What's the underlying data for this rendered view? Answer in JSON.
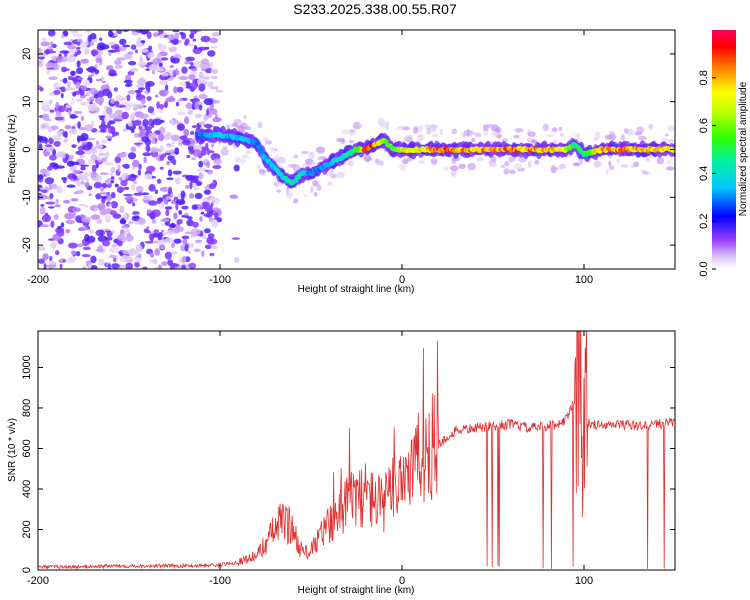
{
  "title": "S233.2025.338.00.55.R07",
  "chart_data": [
    {
      "type": "heatmap",
      "xlabel": "Height of straight line (km)",
      "ylabel": "Frequency (Hz)",
      "xlim": [
        -200,
        150
      ],
      "ylim": [
        -25,
        25
      ],
      "xticks": [
        -200,
        -100,
        0,
        100
      ],
      "yticks": [
        -20,
        -10,
        0,
        10,
        20
      ],
      "colorbar": {
        "label": "Normalized spectral amplitude",
        "range": [
          0,
          1
        ],
        "ticks": [
          0.0,
          0.2,
          0.4,
          0.6,
          0.8
        ],
        "colors": [
          "#ffffff",
          "#c8a0f0",
          "#8000ff",
          "#0000ff",
          "#00c8ff",
          "#00ff80",
          "#80ff00",
          "#ffff00",
          "#ff8000",
          "#ff0000",
          "#ff0060"
        ]
      },
      "ridge": {
        "x": [
          -110,
          -100,
          -90,
          -80,
          -75,
          -70,
          -65,
          -60,
          -55,
          -50,
          -45,
          -40,
          -35,
          -30,
          -25,
          -20,
          -15,
          -10,
          -5,
          0,
          10,
          20,
          40,
          60,
          80,
          90,
          95,
          100,
          110,
          130,
          150
        ],
        "freq": [
          3,
          3,
          2.5,
          1.5,
          -2,
          -4,
          -6,
          -7,
          -5,
          -5,
          -4,
          -3,
          -2,
          -1,
          0,
          0,
          1,
          2,
          0,
          0,
          0,
          0,
          0,
          0,
          0,
          0,
          1,
          -1,
          0,
          0,
          0
        ],
        "amplitude": [
          0.3,
          0.35,
          0.35,
          0.3,
          0.35,
          0.4,
          0.4,
          0.45,
          0.4,
          0.3,
          0.3,
          0.35,
          0.4,
          0.45,
          0.5,
          0.9,
          0.85,
          0.6,
          0.55,
          0.7,
          0.75,
          0.9,
          0.8,
          0.85,
          0.8,
          0.7,
          0.5,
          0.5,
          0.85,
          0.8,
          0.75
        ]
      },
      "noise_region": {
        "x_min": -200,
        "x_max": -90
      }
    },
    {
      "type": "line",
      "xlabel": "Height of straight line (km)",
      "ylabel": "SNR (10 * v/v)",
      "xlim": [
        -200,
        150
      ],
      "ylim": [
        0,
        1180
      ],
      "xticks": [
        -200,
        -100,
        0,
        100
      ],
      "yticks": [
        0,
        200,
        400,
        600,
        800,
        1000
      ],
      "color": "#e03030",
      "series": [
        {
          "name": "SNR",
          "x": [
            -200,
            -180,
            -160,
            -140,
            -120,
            -100,
            -90,
            -80,
            -75,
            -70,
            -65,
            -60,
            -55,
            -50,
            -45,
            -40,
            -35,
            -30,
            -25,
            -20,
            -15,
            -10,
            -5,
            0,
            5,
            10,
            15,
            20,
            25,
            30,
            40,
            50,
            60,
            70,
            80,
            85,
            90,
            95,
            98,
            100,
            102,
            105,
            110,
            120,
            130,
            140,
            150
          ],
          "y": [
            15,
            15,
            20,
            20,
            20,
            25,
            40,
            70,
            130,
            200,
            250,
            200,
            90,
            90,
            170,
            220,
            300,
            330,
            360,
            380,
            340,
            320,
            400,
            480,
            500,
            550,
            600,
            620,
            650,
            690,
            700,
            710,
            720,
            700,
            710,
            720,
            740,
            850,
            1000,
            700,
            730,
            720,
            710,
            720,
            710,
            720,
            730
          ]
        }
      ]
    }
  ]
}
